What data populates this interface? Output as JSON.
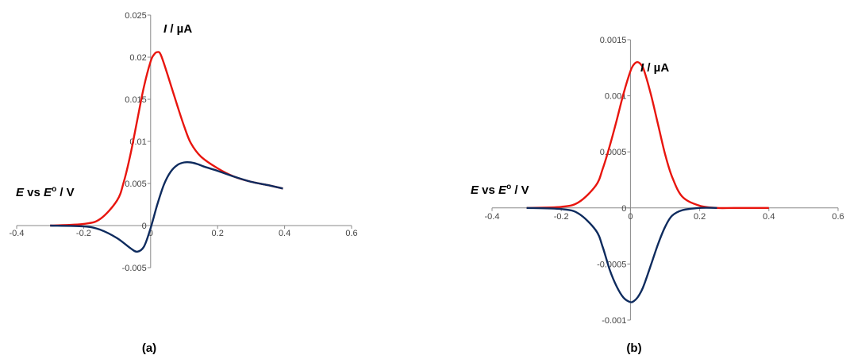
{
  "chart_data": [
    {
      "type": "line",
      "panel_label": "(a)",
      "ylabel": {
        "italic": "I",
        "rest": " / µA"
      },
      "xlabel": {
        "e": "E",
        "vs": " vs ",
        "e2": "E",
        "sup": "o",
        "unit": " / V"
      },
      "xlim": [
        -0.4,
        0.6
      ],
      "ylim": [
        -0.005,
        0.025
      ],
      "x_ticks": [
        -0.4,
        -0.2,
        0,
        0.2,
        0.4,
        0.6
      ],
      "x_tick_labels": [
        "-0.4",
        "-0.2",
        "0",
        "0.2",
        "0.4",
        "0.6"
      ],
      "y_ticks": [
        -0.005,
        0,
        0.005,
        0.01,
        0.015,
        0.02,
        0.025
      ],
      "y_tick_labels": [
        "-0.005",
        "0",
        "0.005",
        "0.01",
        "0.015",
        "0.02",
        "0.025"
      ],
      "grid": false,
      "series": [
        {
          "color": "#e8150e",
          "x": [
            -0.3,
            -0.2,
            -0.15,
            -0.1,
            -0.08,
            -0.06,
            -0.04,
            -0.02,
            0,
            0.01,
            0.02,
            0.03,
            0.05,
            0.08,
            0.1,
            0.12,
            0.15,
            0.2,
            0.25,
            0.3,
            0.35,
            0.395
          ],
          "y": [
            0,
            0.0002,
            0.0008,
            0.003,
            0.0052,
            0.0085,
            0.0125,
            0.0165,
            0.0195,
            0.0203,
            0.0206,
            0.0203,
            0.018,
            0.0142,
            0.0118,
            0.0098,
            0.0082,
            0.0068,
            0.0058,
            0.0052,
            0.0048,
            0.0044
          ]
        },
        {
          "color": "#0e2b5e",
          "x": [
            -0.3,
            -0.2,
            -0.15,
            -0.1,
            -0.06,
            -0.04,
            -0.02,
            0,
            0.02,
            0.04,
            0.06,
            0.08,
            0.1,
            0.12,
            0.14,
            0.16,
            0.2,
            0.25,
            0.3,
            0.35,
            0.395
          ],
          "y": [
            0,
            -0.0001,
            -0.0005,
            -0.0015,
            -0.0027,
            -0.0031,
            -0.0025,
            -0.0003,
            0.0025,
            0.0049,
            0.0064,
            0.0072,
            0.0075,
            0.0075,
            0.0073,
            0.007,
            0.0065,
            0.0058,
            0.0052,
            0.0048,
            0.0044
          ]
        }
      ]
    },
    {
      "type": "line",
      "panel_label": "(b)",
      "ylabel": {
        "italic": "I",
        "rest": " / µA"
      },
      "xlabel": {
        "e": "E",
        "vs": " vs ",
        "e2": "E",
        "sup": "o",
        "unit": " / V"
      },
      "xlim": [
        -0.4,
        0.6
      ],
      "ylim": [
        -0.001,
        0.0015
      ],
      "x_ticks": [
        -0.4,
        -0.2,
        0,
        0.2,
        0.4,
        0.6
      ],
      "x_tick_labels": [
        "-0.4",
        "-0.2",
        "0",
        "0.2",
        "0.4",
        "0.6"
      ],
      "y_ticks": [
        -0.001,
        -0.0005,
        0,
        0.0005,
        0.001,
        0.0015
      ],
      "y_tick_labels": [
        "-0.001",
        "-0.0005",
        "0",
        "0.0005",
        "0.001",
        "0.0015"
      ],
      "grid": false,
      "series": [
        {
          "color": "#e8150e",
          "x": [
            -0.3,
            -0.2,
            -0.15,
            -0.1,
            -0.08,
            -0.06,
            -0.04,
            -0.02,
            0,
            0.01,
            0.02,
            0.03,
            0.04,
            0.06,
            0.08,
            0.1,
            0.12,
            0.15,
            0.2,
            0.25,
            0.3,
            0.4
          ],
          "y": [
            0,
            1e-05,
            5e-05,
            0.0002,
            0.00035,
            0.00055,
            0.00078,
            0.00102,
            0.00122,
            0.00128,
            0.0013,
            0.00128,
            0.00122,
            0.001,
            0.00074,
            0.00048,
            0.00028,
            0.0001,
            2e-05,
            0,
            0,
            0
          ]
        },
        {
          "color": "#0e2b5e",
          "x": [
            -0.3,
            -0.2,
            -0.15,
            -0.1,
            -0.08,
            -0.06,
            -0.04,
            -0.02,
            0,
            0.01,
            0.02,
            0.03,
            0.04,
            0.06,
            0.08,
            0.1,
            0.12,
            0.15,
            0.2,
            0.25
          ],
          "y": [
            0,
            -1e-05,
            -5e-05,
            -0.0002,
            -0.00035,
            -0.00055,
            -0.0007,
            -0.0008,
            -0.00084,
            -0.00083,
            -0.0008,
            -0.00075,
            -0.00068,
            -0.0005,
            -0.00032,
            -0.00017,
            -7e-05,
            -2e-05,
            0,
            0
          ]
        }
      ]
    }
  ]
}
